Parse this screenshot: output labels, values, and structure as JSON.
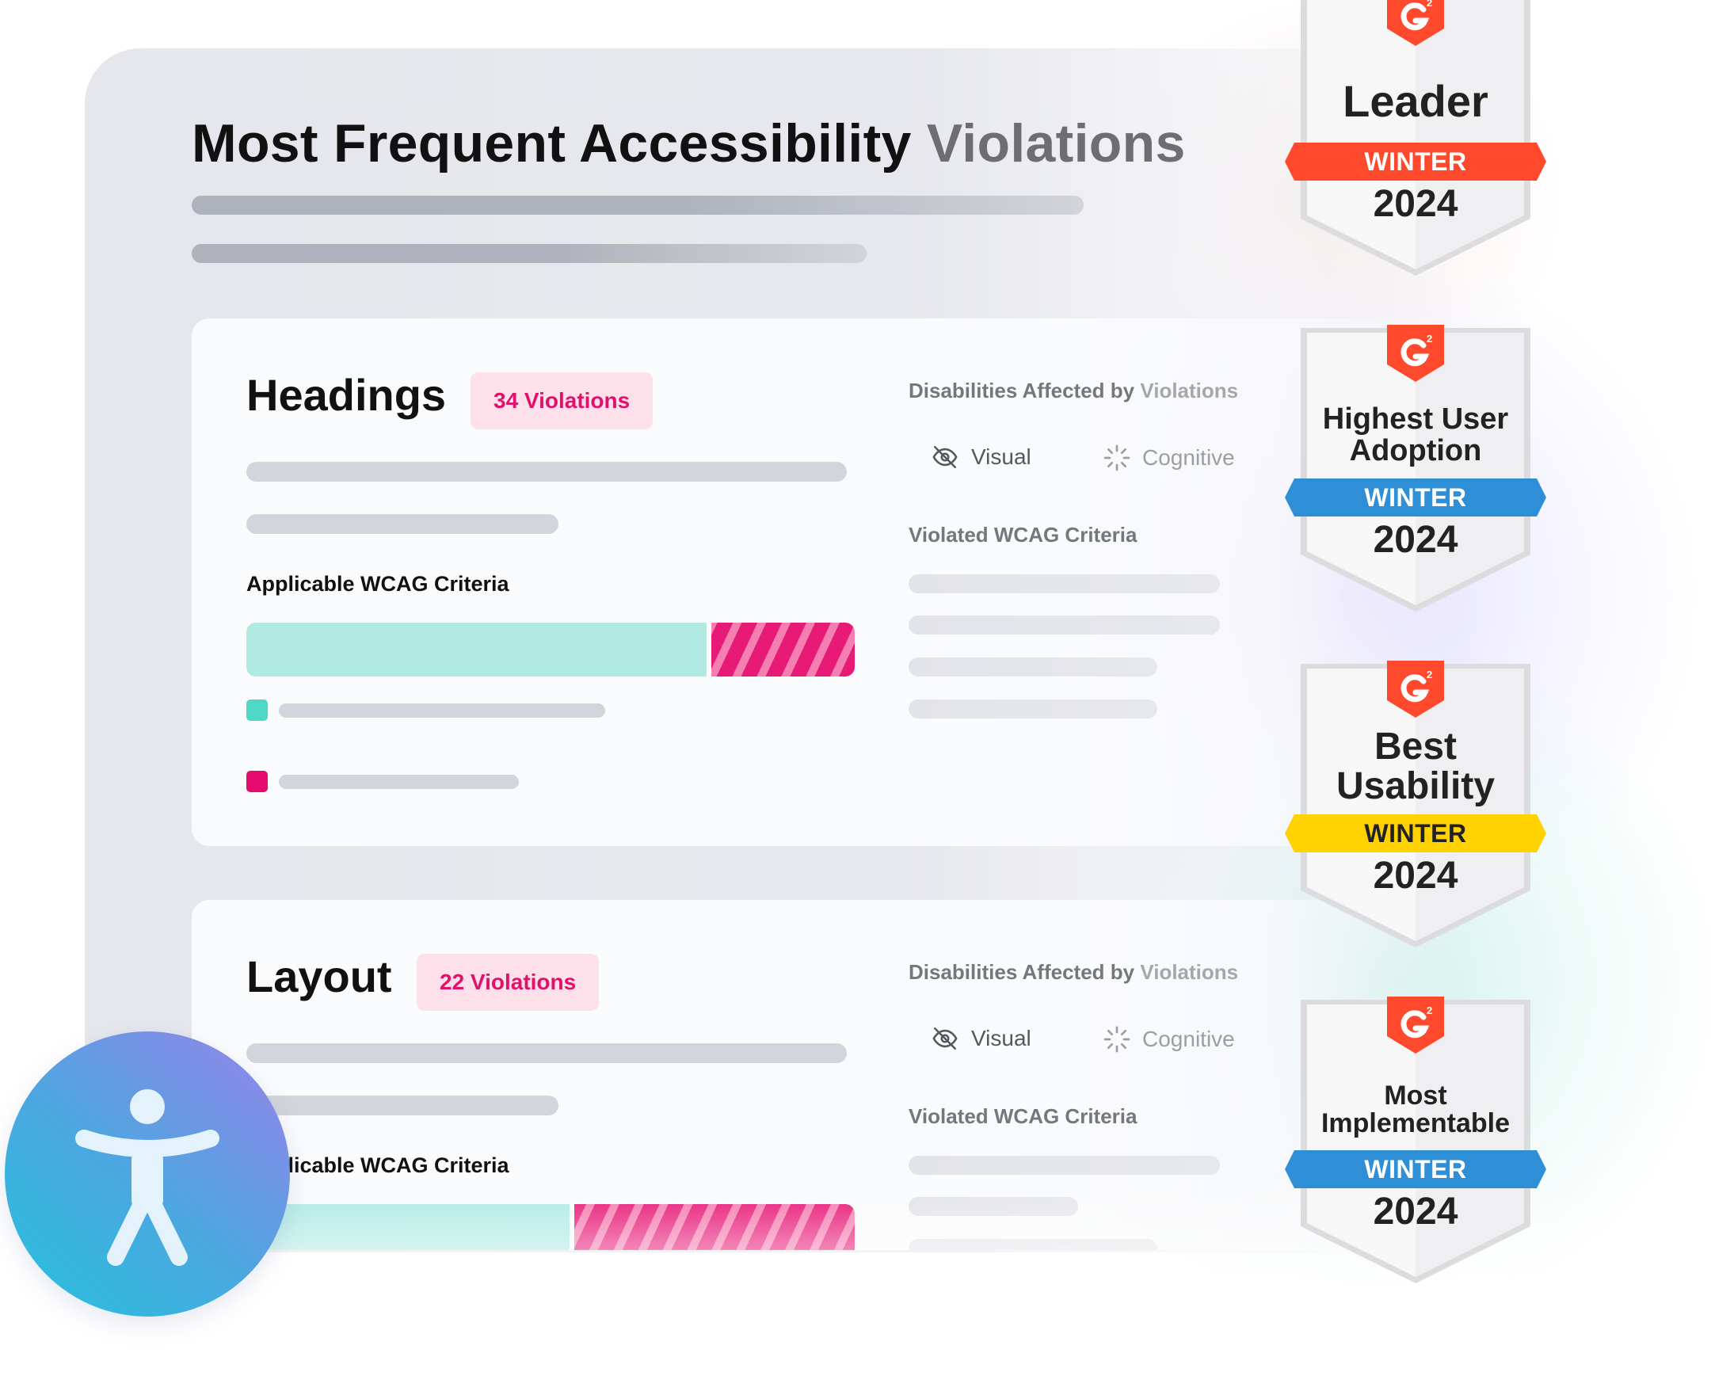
{
  "report": {
    "title_main": "Most Frequent Accessibility",
    "title_fade": "Violations"
  },
  "cards": [
    {
      "title": "Headings",
      "violations": "34 Violations",
      "criteria_label": "Applicable WCAG Criteria",
      "criteria_split": {
        "passed_fraction": 0.76,
        "violated_fraction": 0.24
      },
      "disabilities_label_main": "Disabilities Affected by",
      "disabilities_label_fade": "Violations",
      "disabilities": [
        {
          "label": "Visual",
          "icon": "eye-off-icon"
        },
        {
          "label": "Cognitive",
          "icon": "loader-icon"
        }
      ],
      "violated_label": "Violated WCAG Criteria"
    },
    {
      "title": "Layout",
      "violations": "22 Violations",
      "criteria_label": "Applicable WCAG Criteria",
      "criteria_split": {
        "passed_fraction": 0.535,
        "violated_fraction": 0.465
      },
      "disabilities_label_main": "Disabilities Affected by",
      "disabilities_label_fade": "Violations",
      "disabilities": [
        {
          "label": "Visual",
          "icon": "eye-off-icon"
        },
        {
          "label": "Cognitive",
          "icon": "loader-icon"
        }
      ],
      "violated_label": "Violated WCAG Criteria"
    }
  ],
  "badges": [
    {
      "icon": "g2-logo-icon",
      "name": "Leader",
      "season": "WINTER",
      "year": "2024",
      "ribbon_color": "#ff492c"
    },
    {
      "icon": "g2-logo-icon",
      "name": "Highest User Adoption",
      "season": "WINTER",
      "year": "2024",
      "ribbon_color": "#2e8ed6"
    },
    {
      "icon": "g2-logo-icon",
      "name": "Best Usability",
      "season": "WINTER",
      "year": "2024",
      "ribbon_color": "#ffd200"
    },
    {
      "icon": "g2-logo-icon",
      "name": "Most Implementable",
      "season": "WINTER",
      "year": "2024",
      "ribbon_color": "#2e8ed6"
    }
  ],
  "accessibility_button": {
    "icon": "accessibility-person-icon"
  },
  "colors": {
    "accent_pink": "#e50b71",
    "accent_teal": "#4fd8c6",
    "pill_bg": "#fde0ea"
  }
}
